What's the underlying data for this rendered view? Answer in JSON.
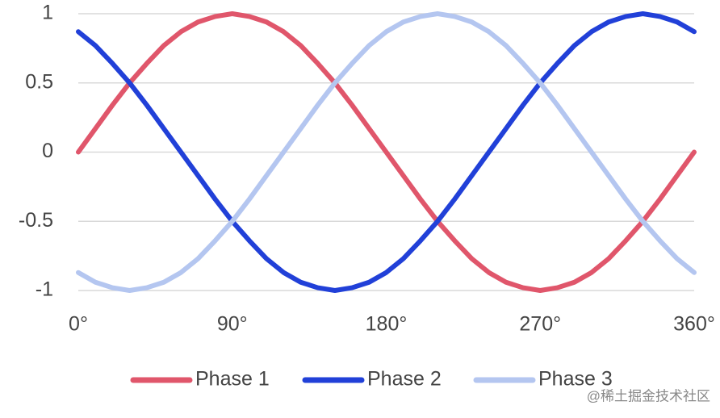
{
  "chart_data": {
    "type": "line",
    "x": [
      0,
      10,
      20,
      30,
      40,
      50,
      60,
      70,
      80,
      90,
      100,
      110,
      120,
      130,
      140,
      150,
      160,
      170,
      180,
      190,
      200,
      210,
      220,
      230,
      240,
      250,
      260,
      270,
      280,
      290,
      300,
      310,
      320,
      330,
      340,
      350,
      360
    ],
    "series": [
      {
        "name": "Phase 1",
        "color": "#e0566b",
        "values": [
          0,
          0.17,
          0.34,
          0.5,
          0.64,
          0.77,
          0.87,
          0.94,
          0.98,
          1,
          0.98,
          0.94,
          0.87,
          0.77,
          0.64,
          0.5,
          0.34,
          0.17,
          0,
          -0.17,
          -0.34,
          -0.5,
          -0.64,
          -0.77,
          -0.87,
          -0.94,
          -0.98,
          -1,
          -0.98,
          -0.94,
          -0.87,
          -0.77,
          -0.64,
          -0.5,
          -0.34,
          -0.17,
          0
        ]
      },
      {
        "name": "Phase 2",
        "color": "#2140d8",
        "values": [
          0.87,
          0.77,
          0.64,
          0.5,
          0.34,
          0.17,
          0,
          -0.17,
          -0.34,
          -0.5,
          -0.64,
          -0.77,
          -0.87,
          -0.94,
          -0.98,
          -1,
          -0.98,
          -0.94,
          -0.87,
          -0.77,
          -0.64,
          -0.5,
          -0.34,
          -0.17,
          0,
          0.17,
          0.34,
          0.5,
          0.64,
          0.77,
          0.87,
          0.94,
          0.98,
          1,
          0.98,
          0.94,
          0.87
        ]
      },
      {
        "name": "Phase 3",
        "color": "#b4c6f0",
        "values": [
          -0.87,
          -0.94,
          -0.98,
          -1,
          -0.98,
          -0.94,
          -0.87,
          -0.77,
          -0.64,
          -0.5,
          -0.34,
          -0.17,
          0,
          0.17,
          0.34,
          0.5,
          0.64,
          0.77,
          0.87,
          0.94,
          0.98,
          1,
          0.98,
          0.94,
          0.87,
          0.77,
          0.64,
          0.5,
          0.34,
          0.17,
          0,
          -0.17,
          -0.34,
          -0.5,
          -0.64,
          -0.77,
          -0.87
        ]
      }
    ],
    "xlim": [
      0,
      360
    ],
    "xticks": [
      {
        "value": 0,
        "label": "0°"
      },
      {
        "value": 90,
        "label": "90°"
      },
      {
        "value": 180,
        "label": "180°"
      },
      {
        "value": 270,
        "label": "270°"
      },
      {
        "value": 360,
        "label": "360°"
      }
    ],
    "ylim": [
      -1,
      1
    ],
    "yticks": [
      1,
      0.5,
      0,
      -0.5,
      -1
    ],
    "grid": true,
    "legend": "bottom",
    "watermark": "@稀土掘金技术社区"
  }
}
